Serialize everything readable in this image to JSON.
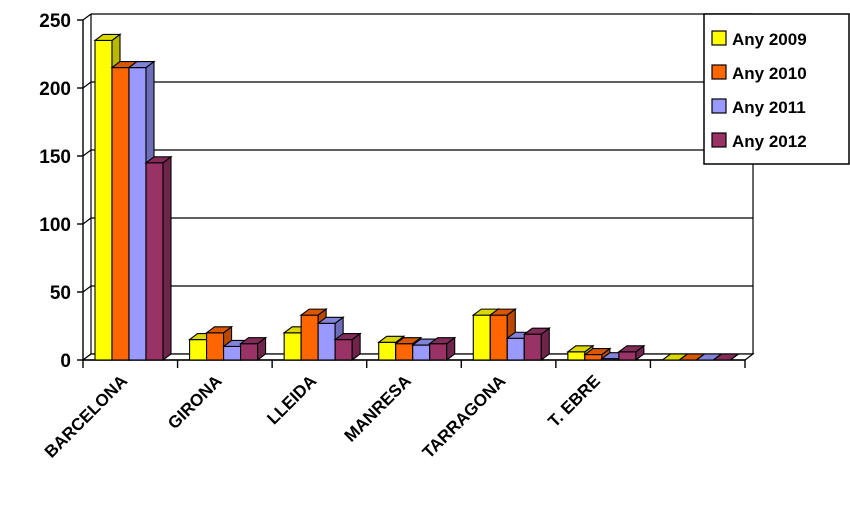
{
  "chart_data": {
    "type": "bar",
    "categories": [
      "BARCELONA",
      "GIRONA",
      "LLEIDA",
      "MANRESA",
      "TARRAGONA",
      "T. EBRE",
      ""
    ],
    "series": [
      {
        "name": "Any 2009",
        "color": "#ffff00",
        "values": [
          235,
          15,
          20,
          13,
          33,
          6,
          0
        ]
      },
      {
        "name": "Any 2010",
        "color": "#ff6600",
        "values": [
          215,
          20,
          33,
          12,
          33,
          4,
          0
        ]
      },
      {
        "name": "Any 2011",
        "color": "#9999ff",
        "values": [
          215,
          10,
          27,
          11,
          16,
          1,
          0
        ]
      },
      {
        "name": "Any 2012",
        "color": "#993366",
        "values": [
          145,
          12,
          15,
          12,
          19,
          6,
          0
        ]
      }
    ],
    "yticks": [
      0,
      50,
      100,
      150,
      200,
      250
    ],
    "ylim": [
      0,
      250
    ],
    "grid": true,
    "legend_position": "top-right",
    "three_d": true
  }
}
